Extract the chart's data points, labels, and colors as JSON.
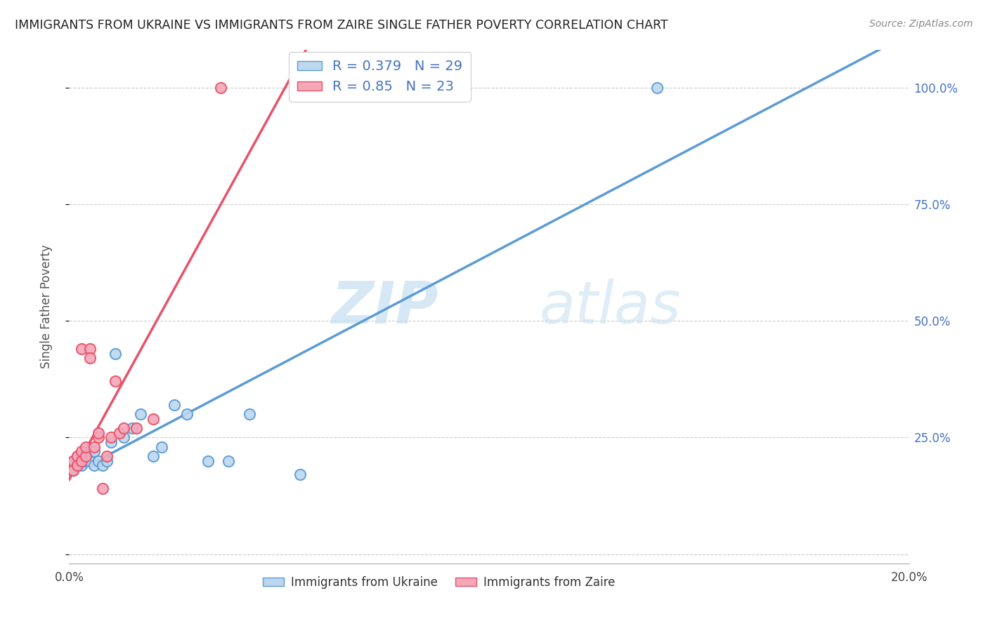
{
  "title": "IMMIGRANTS FROM UKRAINE VS IMMIGRANTS FROM ZAIRE SINGLE FATHER POVERTY CORRELATION CHART",
  "source": "Source: ZipAtlas.com",
  "ylabel": "Single Father Poverty",
  "xlim": [
    0.0,
    0.2
  ],
  "ylim": [
    -0.02,
    1.08
  ],
  "ukraine_color": "#5b9bd5",
  "ukraine_color_light": "#bdd7ee",
  "zaire_color": "#f4a7b9",
  "zaire_color_dark": "#e8526a",
  "R_ukraine": 0.379,
  "N_ukraine": 29,
  "R_zaire": 0.85,
  "N_zaire": 23,
  "ukraine_scatter_x": [
    0.001,
    0.001,
    0.002,
    0.002,
    0.003,
    0.003,
    0.004,
    0.004,
    0.005,
    0.005,
    0.006,
    0.006,
    0.007,
    0.008,
    0.009,
    0.01,
    0.011,
    0.013,
    0.015,
    0.017,
    0.02,
    0.022,
    0.025,
    0.028,
    0.033,
    0.038,
    0.043,
    0.055,
    0.14
  ],
  "ukraine_scatter_y": [
    0.2,
    0.18,
    0.21,
    0.19,
    0.2,
    0.19,
    0.21,
    0.2,
    0.22,
    0.2,
    0.22,
    0.19,
    0.2,
    0.19,
    0.2,
    0.24,
    0.43,
    0.25,
    0.27,
    0.3,
    0.21,
    0.23,
    0.32,
    0.3,
    0.2,
    0.2,
    0.3,
    0.17,
    1.0
  ],
  "zaire_scatter_x": [
    0.001,
    0.001,
    0.002,
    0.002,
    0.003,
    0.003,
    0.003,
    0.004,
    0.004,
    0.005,
    0.005,
    0.006,
    0.007,
    0.007,
    0.008,
    0.009,
    0.01,
    0.011,
    0.012,
    0.013,
    0.016,
    0.02,
    0.036
  ],
  "zaire_scatter_y": [
    0.2,
    0.18,
    0.21,
    0.19,
    0.2,
    0.22,
    0.44,
    0.21,
    0.23,
    0.44,
    0.42,
    0.23,
    0.25,
    0.26,
    0.14,
    0.21,
    0.25,
    0.37,
    0.26,
    0.27,
    0.27,
    0.29,
    1.0
  ],
  "watermark_zip": "ZIP",
  "watermark_atlas": "atlas",
  "background_color": "#ffffff",
  "grid_color": "#cccccc",
  "ytick_positions": [
    0.0,
    0.25,
    0.5,
    0.75,
    1.0
  ],
  "ytick_labels_right": [
    "",
    "25.0%",
    "50.0%",
    "75.0%",
    "100.0%"
  ],
  "xtick_positions": [
    0.0,
    0.05,
    0.1,
    0.15,
    0.2
  ],
  "xtick_labels": [
    "0.0%",
    "",
    "",
    "",
    "20.0%"
  ]
}
